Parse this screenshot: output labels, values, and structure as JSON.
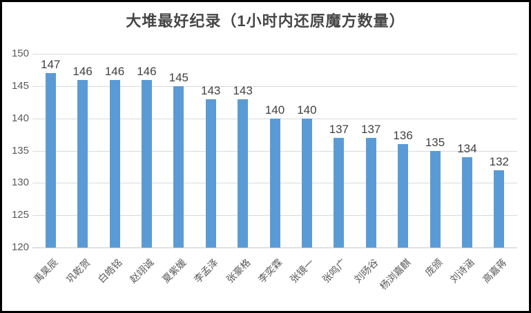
{
  "frame": {
    "border_color": "#000000",
    "background_color": "#ffffff"
  },
  "chart_data": {
    "type": "bar",
    "title": "大堆最好纪录（1小时内还原魔方数量）",
    "categories": [
      "禹昊辰",
      "巩乾贺",
      "白皓铭",
      "赵翊诚",
      "夏紫媛",
      "李孟泽",
      "张豪格",
      "李奕霖",
      "张镜一",
      "张鸣广",
      "刘旸谷",
      "杨浏嘉麒",
      "庞颁",
      "刘诗涵",
      "高嘉蒋"
    ],
    "values": [
      147,
      146,
      146,
      146,
      145,
      143,
      143,
      140,
      140,
      137,
      137,
      136,
      135,
      134,
      132
    ],
    "xlabel": "",
    "ylabel": "",
    "ylim": [
      120,
      150
    ],
    "yticks": [
      150,
      145,
      140,
      135,
      130,
      125,
      120
    ],
    "ytick_step": 5,
    "grid": true,
    "legend_position": "none",
    "data_labels_shown": true,
    "x_label_rotation_deg": 45,
    "bar_color": "#5B9BD5",
    "gridline_color": "#D9D9D9",
    "axis_line_color": "#C6C6C6",
    "tick_label_color": "#595959",
    "data_label_color": "#404040",
    "title_color": "#464646"
  }
}
